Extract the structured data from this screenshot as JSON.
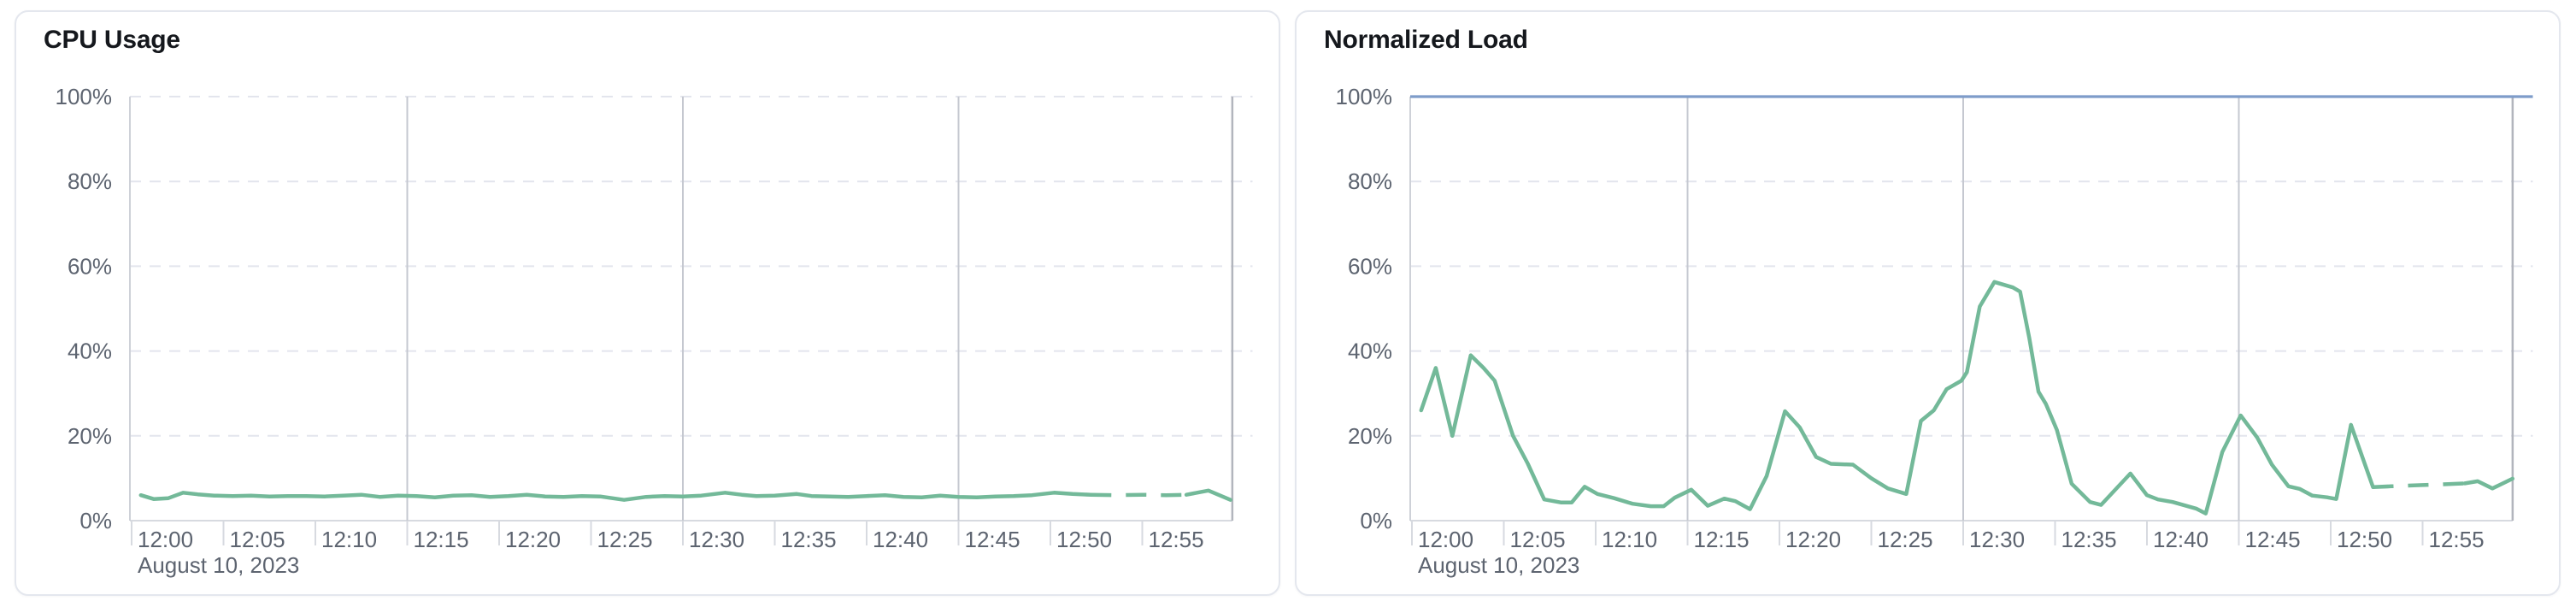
{
  "theme": {
    "page_background": "#ffffff",
    "card_background": "#ffffff",
    "card_border": "#e4e7ee",
    "title_color": "#15181d",
    "axis_label_color": "#5d6470",
    "grid_dashed_color": "#e3e5ed",
    "grid_major_color": "#c5c8d0",
    "end_marker_color": "#b2b5bd",
    "axis_line_color": "#d7dae0",
    "y_axis_line_color": "#ced1d8",
    "series_green": "#73b999",
    "threshold_blue": "#7e9cc9"
  },
  "chart_data": [
    {
      "type": "line",
      "title": "CPU Usage",
      "date_label": "August 10, 2023",
      "x_tick_labels": [
        "12:00",
        "12:05",
        "12:10",
        "12:15",
        "12:20",
        "12:25",
        "12:30",
        "12:35",
        "12:40",
        "12:45",
        "12:50",
        "12:55"
      ],
      "x_tick_minutes": [
        0,
        5,
        10,
        15,
        20,
        25,
        30,
        35,
        40,
        45,
        50,
        55
      ],
      "major_grid_minutes": [
        15,
        30,
        45
      ],
      "end_marker_minute": 59.9,
      "x_range_minutes": [
        0,
        61
      ],
      "ylim": [
        0,
        100
      ],
      "y_tick_labels": [
        "0%",
        "20%",
        "40%",
        "60%",
        "80%",
        "100%"
      ],
      "y_tick_values": [
        0,
        20,
        40,
        60,
        80,
        100
      ],
      "grid": true,
      "legend_position": "none",
      "threshold_line": null,
      "series": [
        {
          "name": "CPU Usage",
          "color": "#73b999",
          "dashed_minutes": [
            52.2,
            57.4
          ],
          "points": [
            [
              0.5,
              6.0
            ],
            [
              1.2,
              5.1
            ],
            [
              2.0,
              5.3
            ],
            [
              2.8,
              6.6
            ],
            [
              3.6,
              6.2
            ],
            [
              4.5,
              5.9
            ],
            [
              5.5,
              5.8
            ],
            [
              6.5,
              5.9
            ],
            [
              7.5,
              5.7
            ],
            [
              8.5,
              5.8
            ],
            [
              9.5,
              5.8
            ],
            [
              10.5,
              5.7
            ],
            [
              11.5,
              5.9
            ],
            [
              12.5,
              6.1
            ],
            [
              13.5,
              5.6
            ],
            [
              14.5,
              5.9
            ],
            [
              15.5,
              5.8
            ],
            [
              16.5,
              5.5
            ],
            [
              17.5,
              5.9
            ],
            [
              18.5,
              6.0
            ],
            [
              19.5,
              5.6
            ],
            [
              20.5,
              5.8
            ],
            [
              21.5,
              6.1
            ],
            [
              22.5,
              5.7
            ],
            [
              23.5,
              5.6
            ],
            [
              24.5,
              5.8
            ],
            [
              25.5,
              5.7
            ],
            [
              26.8,
              4.9
            ],
            [
              28.0,
              5.6
            ],
            [
              29.0,
              5.8
            ],
            [
              30.0,
              5.7
            ],
            [
              31.0,
              5.9
            ],
            [
              32.3,
              6.6
            ],
            [
              33.2,
              6.1
            ],
            [
              34.0,
              5.8
            ],
            [
              35.0,
              5.9
            ],
            [
              36.2,
              6.3
            ],
            [
              37.0,
              5.8
            ],
            [
              38.0,
              5.7
            ],
            [
              39.0,
              5.6
            ],
            [
              40.0,
              5.8
            ],
            [
              41.0,
              6.0
            ],
            [
              42.0,
              5.6
            ],
            [
              43.0,
              5.5
            ],
            [
              44.0,
              5.9
            ],
            [
              45.0,
              5.6
            ],
            [
              46.0,
              5.5
            ],
            [
              47.0,
              5.7
            ],
            [
              48.0,
              5.8
            ],
            [
              49.0,
              6.0
            ],
            [
              50.2,
              6.6
            ],
            [
              51.2,
              6.3
            ],
            [
              52.2,
              6.1
            ],
            [
              53.5,
              6.0
            ],
            [
              55.0,
              6.1
            ],
            [
              56.3,
              6.0
            ],
            [
              57.4,
              6.1
            ],
            [
              58.1,
              6.7
            ],
            [
              58.6,
              7.1
            ],
            [
              59.8,
              4.9
            ]
          ]
        }
      ]
    },
    {
      "type": "line",
      "title": "Normalized Load",
      "date_label": "August 10, 2023",
      "x_tick_labels": [
        "12:00",
        "12:05",
        "12:10",
        "12:15",
        "12:20",
        "12:25",
        "12:30",
        "12:35",
        "12:40",
        "12:45",
        "12:50",
        "12:55"
      ],
      "x_tick_minutes": [
        0,
        5,
        10,
        15,
        20,
        25,
        30,
        35,
        40,
        45,
        50,
        55
      ],
      "major_grid_minutes": [
        15,
        30,
        45
      ],
      "end_marker_minute": 59.9,
      "x_range_minutes": [
        0,
        61
      ],
      "ylim": [
        0,
        100
      ],
      "y_tick_labels": [
        "0%",
        "20%",
        "40%",
        "60%",
        "80%",
        "100%"
      ],
      "y_tick_values": [
        0,
        20,
        40,
        60,
        80,
        100
      ],
      "grid": true,
      "legend_position": "none",
      "threshold_line": {
        "value": 100,
        "color": "#7e9cc9"
      },
      "series": [
        {
          "name": "Normalized Load",
          "color": "#73b999",
          "dashed_minutes": [
            52.3,
            57.3
          ],
          "points": [
            [
              0.5,
              26.0
            ],
            [
              1.3,
              36.0
            ],
            [
              2.2,
              20.0
            ],
            [
              3.2,
              39.0
            ],
            [
              3.9,
              36.0
            ],
            [
              4.5,
              33.0
            ],
            [
              5.5,
              20.0
            ],
            [
              6.3,
              13.5
            ],
            [
              7.2,
              5.0
            ],
            [
              8.1,
              4.3
            ],
            [
              8.7,
              4.3
            ],
            [
              9.4,
              8.0
            ],
            [
              10.1,
              6.3
            ],
            [
              11.0,
              5.3
            ],
            [
              12.0,
              4.0
            ],
            [
              13.0,
              3.4
            ],
            [
              13.7,
              3.4
            ],
            [
              14.3,
              5.4
            ],
            [
              15.2,
              7.3
            ],
            [
              16.1,
              3.5
            ],
            [
              17.0,
              5.2
            ],
            [
              17.6,
              4.6
            ],
            [
              18.4,
              2.7
            ],
            [
              19.3,
              10.5
            ],
            [
              20.3,
              25.8
            ],
            [
              21.1,
              22.0
            ],
            [
              22.0,
              15.0
            ],
            [
              22.8,
              13.4
            ],
            [
              24.0,
              13.2
            ],
            [
              25.0,
              10.0
            ],
            [
              25.9,
              7.6
            ],
            [
              26.9,
              6.3
            ],
            [
              27.7,
              23.5
            ],
            [
              28.4,
              26.0
            ],
            [
              29.1,
              31.0
            ],
            [
              29.9,
              33.0
            ],
            [
              30.2,
              35.0
            ],
            [
              30.9,
              50.5
            ],
            [
              31.7,
              56.3
            ],
            [
              32.7,
              55.0
            ],
            [
              33.1,
              54.0
            ],
            [
              33.6,
              43.0
            ],
            [
              34.1,
              30.4
            ],
            [
              34.5,
              27.5
            ],
            [
              35.1,
              21.4
            ],
            [
              35.9,
              8.7
            ],
            [
              36.9,
              4.4
            ],
            [
              37.5,
              3.7
            ],
            [
              39.1,
              11.1
            ],
            [
              40.0,
              6.0
            ],
            [
              40.6,
              5.0
            ],
            [
              41.4,
              4.4
            ],
            [
              42.7,
              2.8
            ],
            [
              43.2,
              1.7
            ],
            [
              44.1,
              16.2
            ],
            [
              45.1,
              24.8
            ],
            [
              46.0,
              19.6
            ],
            [
              46.8,
              13.2
            ],
            [
              47.7,
              8.1
            ],
            [
              48.3,
              7.5
            ],
            [
              49.0,
              5.9
            ],
            [
              49.8,
              5.5
            ],
            [
              50.3,
              5.1
            ],
            [
              51.1,
              22.6
            ],
            [
              52.0,
              11.6
            ],
            [
              52.3,
              7.9
            ],
            [
              53.3,
              8.1
            ],
            [
              54.5,
              8.3
            ],
            [
              55.8,
              8.5
            ],
            [
              57.3,
              8.8
            ],
            [
              58.0,
              9.3
            ],
            [
              58.8,
              7.6
            ],
            [
              59.9,
              9.9
            ]
          ]
        }
      ]
    }
  ]
}
